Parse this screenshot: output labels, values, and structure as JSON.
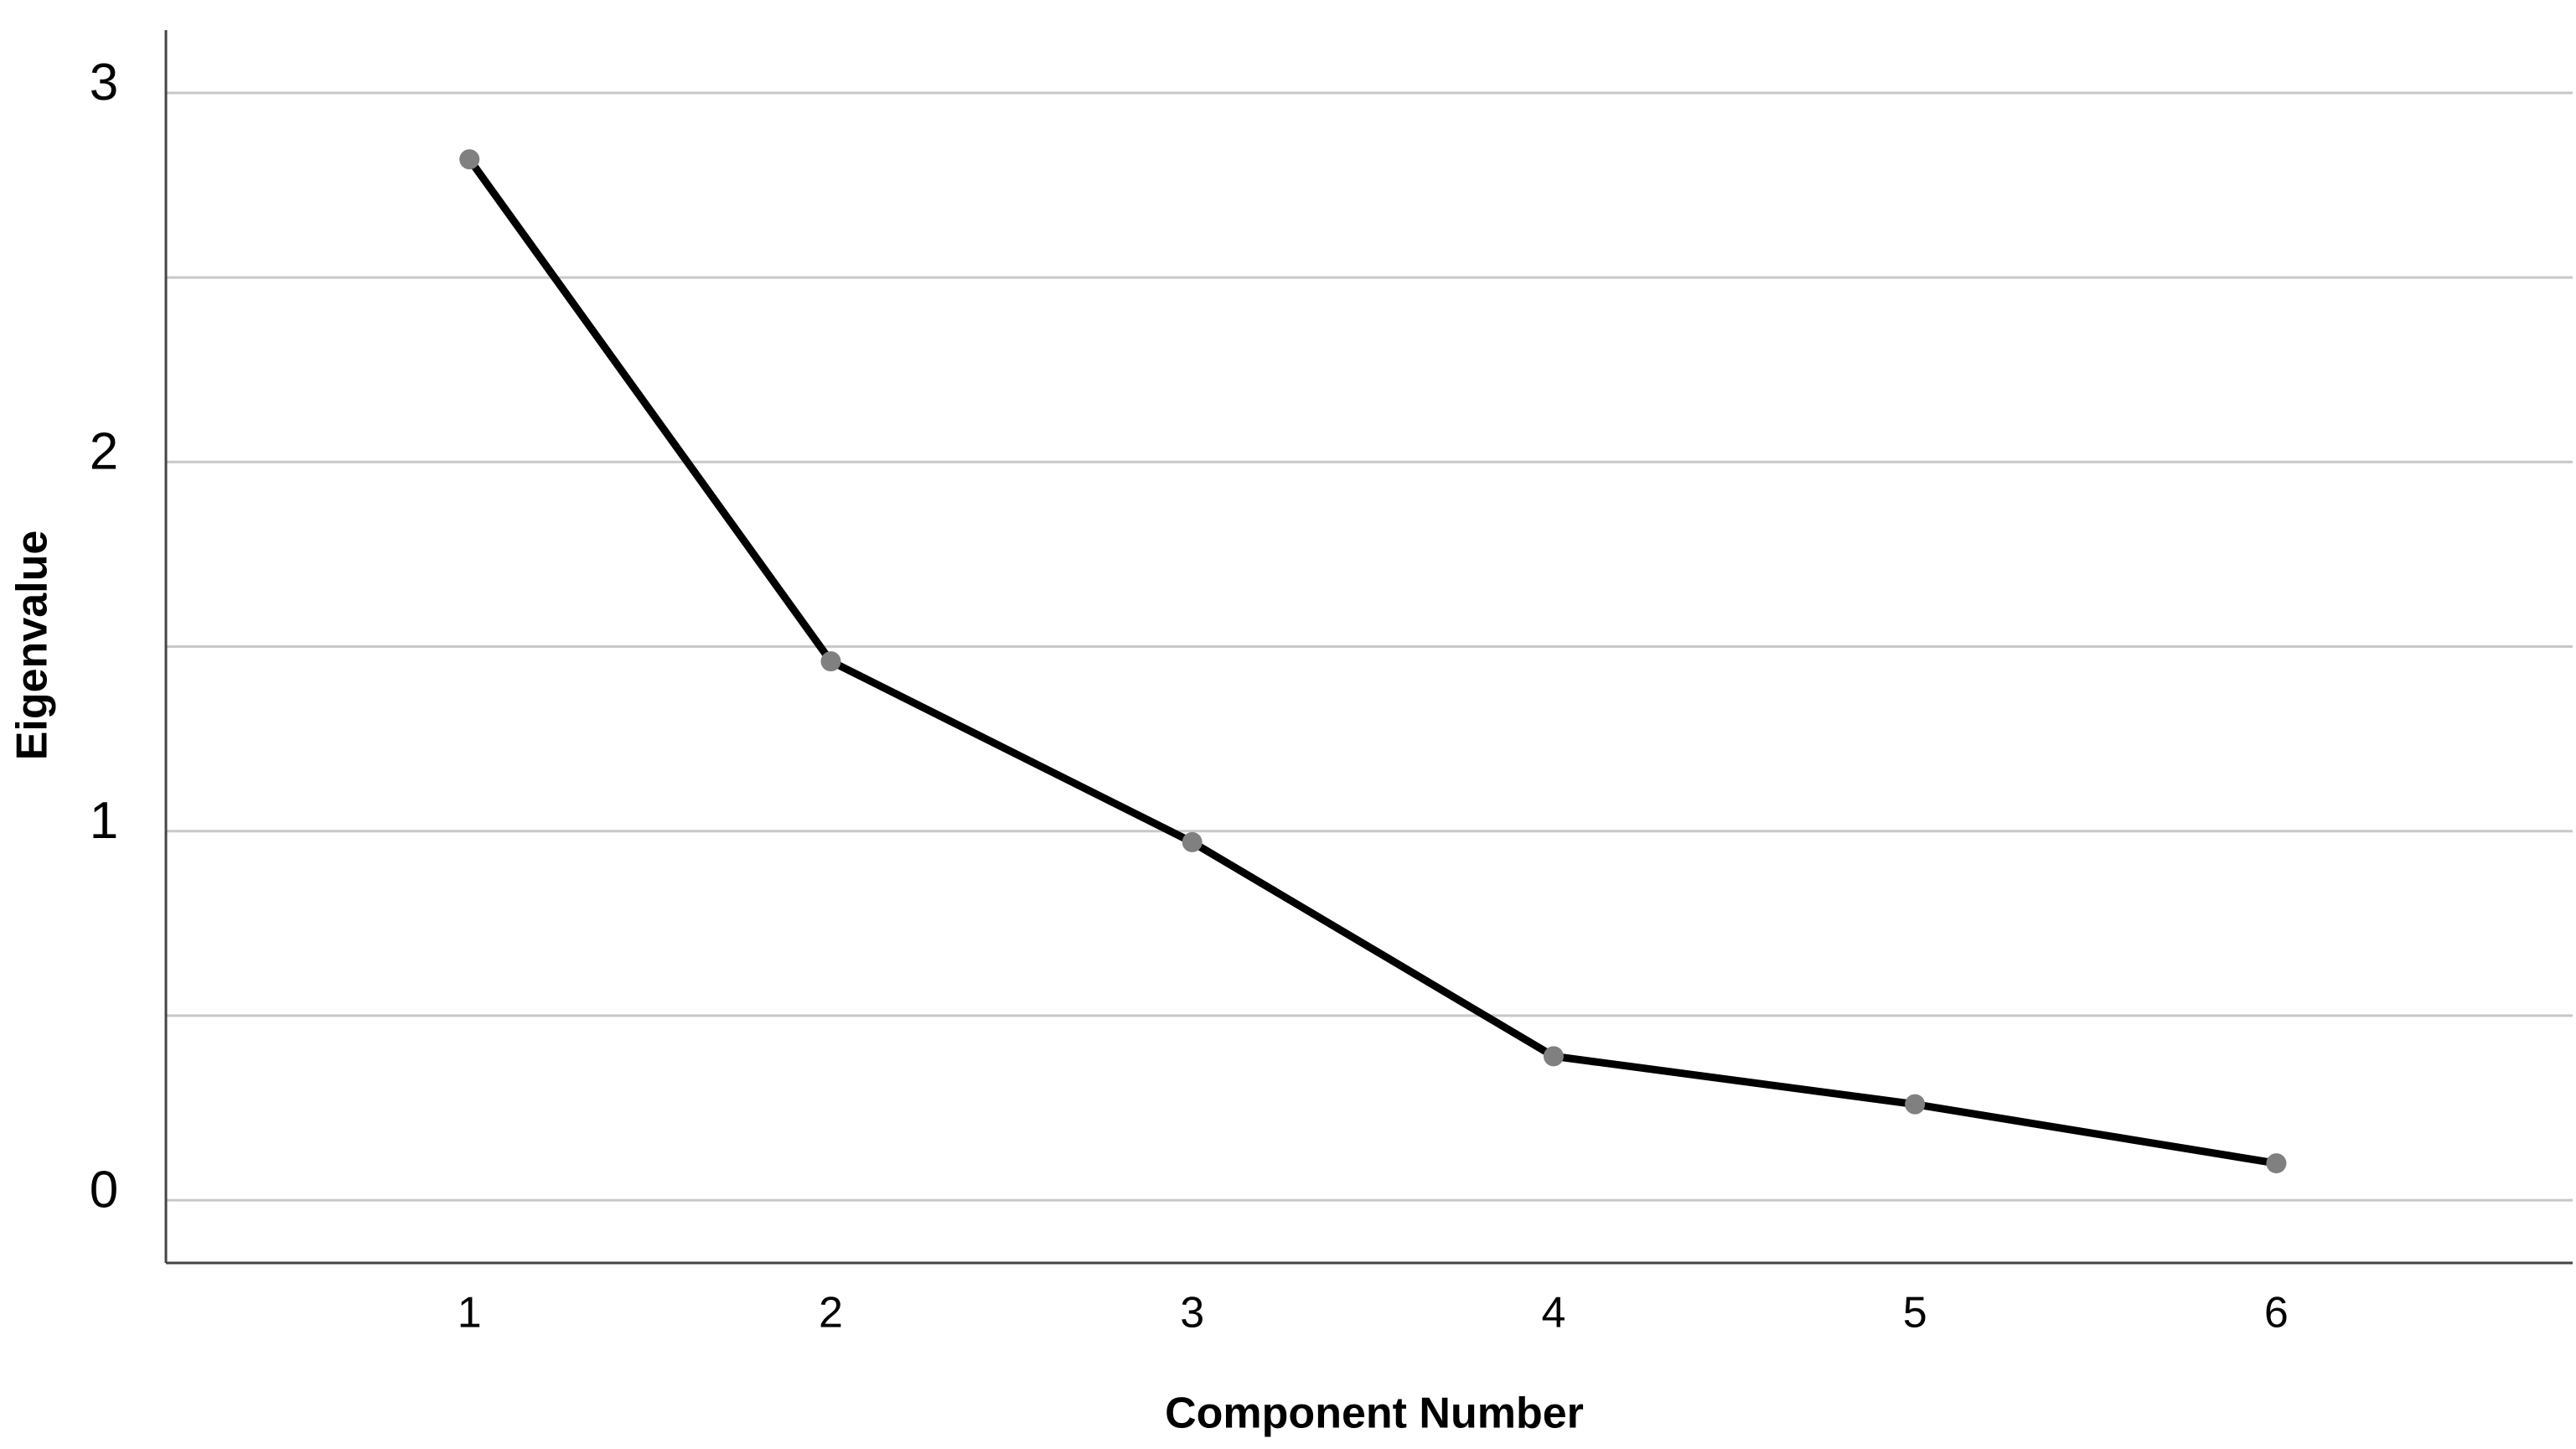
{
  "chart_data": {
    "type": "line",
    "x_label": "Component Number",
    "y_label": "Eigenvalue",
    "x": [
      1,
      2,
      3,
      4,
      5,
      6
    ],
    "series": [
      {
        "values": [
          2.82,
          1.46,
          0.97,
          0.39,
          0.26,
          0.1
        ],
        "color": "#000000",
        "marker_color": "#808080"
      }
    ],
    "xlim": [
      0.16,
      6.82
    ],
    "xticks": [
      1,
      2,
      3,
      4,
      5,
      6
    ],
    "ylim": [
      -0.17,
      3.17
    ],
    "yticks": [
      0,
      1,
      2,
      3
    ],
    "minor_yticks": [
      0.5,
      1.5,
      2.5
    ],
    "grid": true
  }
}
